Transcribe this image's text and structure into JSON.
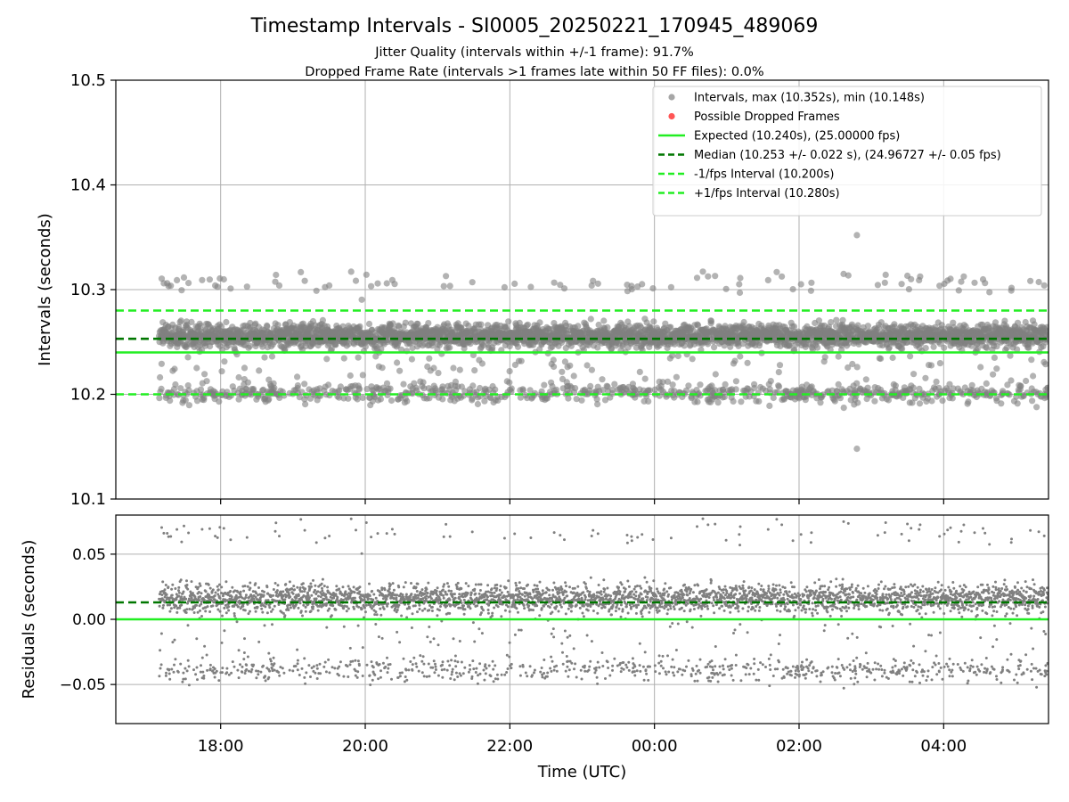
{
  "figure": {
    "title": "Timestamp Intervals - SI0005_20250221_170945_489069",
    "subtitle_line1": "Jitter Quality (intervals within +/-1 frame): 91.7%",
    "subtitle_line2": "Dropped Frame Rate (intervals >1 frames late within 50 FF files): 0.0%"
  },
  "colors": {
    "interval_points": "#808080",
    "dropped_points": "#ff5555",
    "expected_line": "#22ee22",
    "median_line": "#007700",
    "bound_lines": "#22ee22",
    "grid": "#b0b0b0"
  },
  "chart_data": [
    {
      "type": "scatter",
      "ylabel": "Intervals (seconds)",
      "ylim": [
        10.1,
        10.5
      ],
      "yticks": [
        10.1,
        10.2,
        10.3,
        10.4,
        10.5
      ],
      "ytick_labels": [
        "10.1",
        "10.2",
        "10.3",
        "10.4",
        "10.5"
      ],
      "xlim_hours": [
        16.55,
        29.45
      ],
      "xticks_hours": [
        18,
        20,
        22,
        24,
        26,
        28
      ],
      "grid": true,
      "legend_placement": "top-right",
      "legend": [
        {
          "label": "Intervals, max (10.352s), min (10.148s)",
          "kind": "point",
          "color": "#a6a6a6"
        },
        {
          "label": "Possible Dropped Frames",
          "kind": "point",
          "color": "#ff5555"
        },
        {
          "label": "Expected (10.240s), (25.00000 fps)",
          "kind": "solid",
          "color": "#22ee22"
        },
        {
          "label": "Median (10.253 +/- 0.022 s), (24.96727 +/- 0.05 fps)",
          "kind": "dashed",
          "color": "#007700"
        },
        {
          "label": "-1/fps Interval (10.200s)",
          "kind": "dashed",
          "color": "#22ee22"
        },
        {
          "label": "+1/fps Interval (10.280s)",
          "kind": "dashed",
          "color": "#22ee22"
        }
      ],
      "reference_lines": [
        {
          "name": "Expected",
          "y": 10.24,
          "style": "solid",
          "color": "#22ee22"
        },
        {
          "name": "Median",
          "y": 10.253,
          "style": "dashed",
          "color": "#007700"
        },
        {
          "name": "-1/fps Interval",
          "y": 10.2,
          "style": "dashed",
          "color": "#22ee22"
        },
        {
          "name": "+1/fps Interval",
          "y": 10.28,
          "style": "dashed",
          "color": "#22ee22"
        }
      ],
      "series": [
        {
          "name": "Intervals",
          "x_range_hours": [
            17.15,
            29.45
          ],
          "n_points": 4140,
          "max": 10.352,
          "min": 10.148,
          "clusters": [
            {
              "center": 10.256,
              "spread": 0.0055,
              "fraction": 0.77
            },
            {
              "center": 10.201,
              "spread": 0.0045,
              "fraction": 0.17
            },
            {
              "center": 10.306,
              "spread": 0.0055,
              "fraction": 0.025
            },
            {
              "center": 10.228,
              "spread": 0.012,
              "fraction": 0.035
            }
          ],
          "extreme_points": [
            {
              "x_hours": 26.8,
              "y": 10.352
            },
            {
              "x_hours": 26.8,
              "y": 10.148
            }
          ]
        }
      ]
    },
    {
      "type": "scatter",
      "xlabel": "Time (UTC)",
      "ylabel": "Residuals (seconds)",
      "ylim": [
        -0.08,
        0.08
      ],
      "yticks": [
        -0.05,
        0.0,
        0.05
      ],
      "ytick_labels": [
        "−0.05",
        "0.00",
        "0.05"
      ],
      "xlim_hours": [
        16.55,
        29.45
      ],
      "xticks_hours": [
        18,
        20,
        22,
        24,
        26,
        28
      ],
      "xtick_labels": [
        "18:00",
        "20:00",
        "22:00",
        "00:00",
        "02:00",
        "04:00"
      ],
      "grid": true,
      "reference_lines": [
        {
          "name": "Expected",
          "y": 0.0,
          "style": "solid",
          "color": "#22ee22"
        },
        {
          "name": "Median",
          "y": 0.013,
          "style": "dashed",
          "color": "#007700"
        }
      ],
      "series": [
        {
          "name": "Residuals",
          "x_range_hours": [
            17.15,
            29.45
          ],
          "n_points": 4140,
          "clusters": [
            {
              "center": 0.016,
              "spread": 0.0055,
              "fraction": 0.77
            },
            {
              "center": -0.039,
              "spread": 0.0045,
              "fraction": 0.17
            },
            {
              "center": 0.066,
              "spread": 0.0055,
              "fraction": 0.025
            },
            {
              "center": -0.012,
              "spread": 0.012,
              "fraction": 0.035
            }
          ]
        }
      ]
    }
  ]
}
